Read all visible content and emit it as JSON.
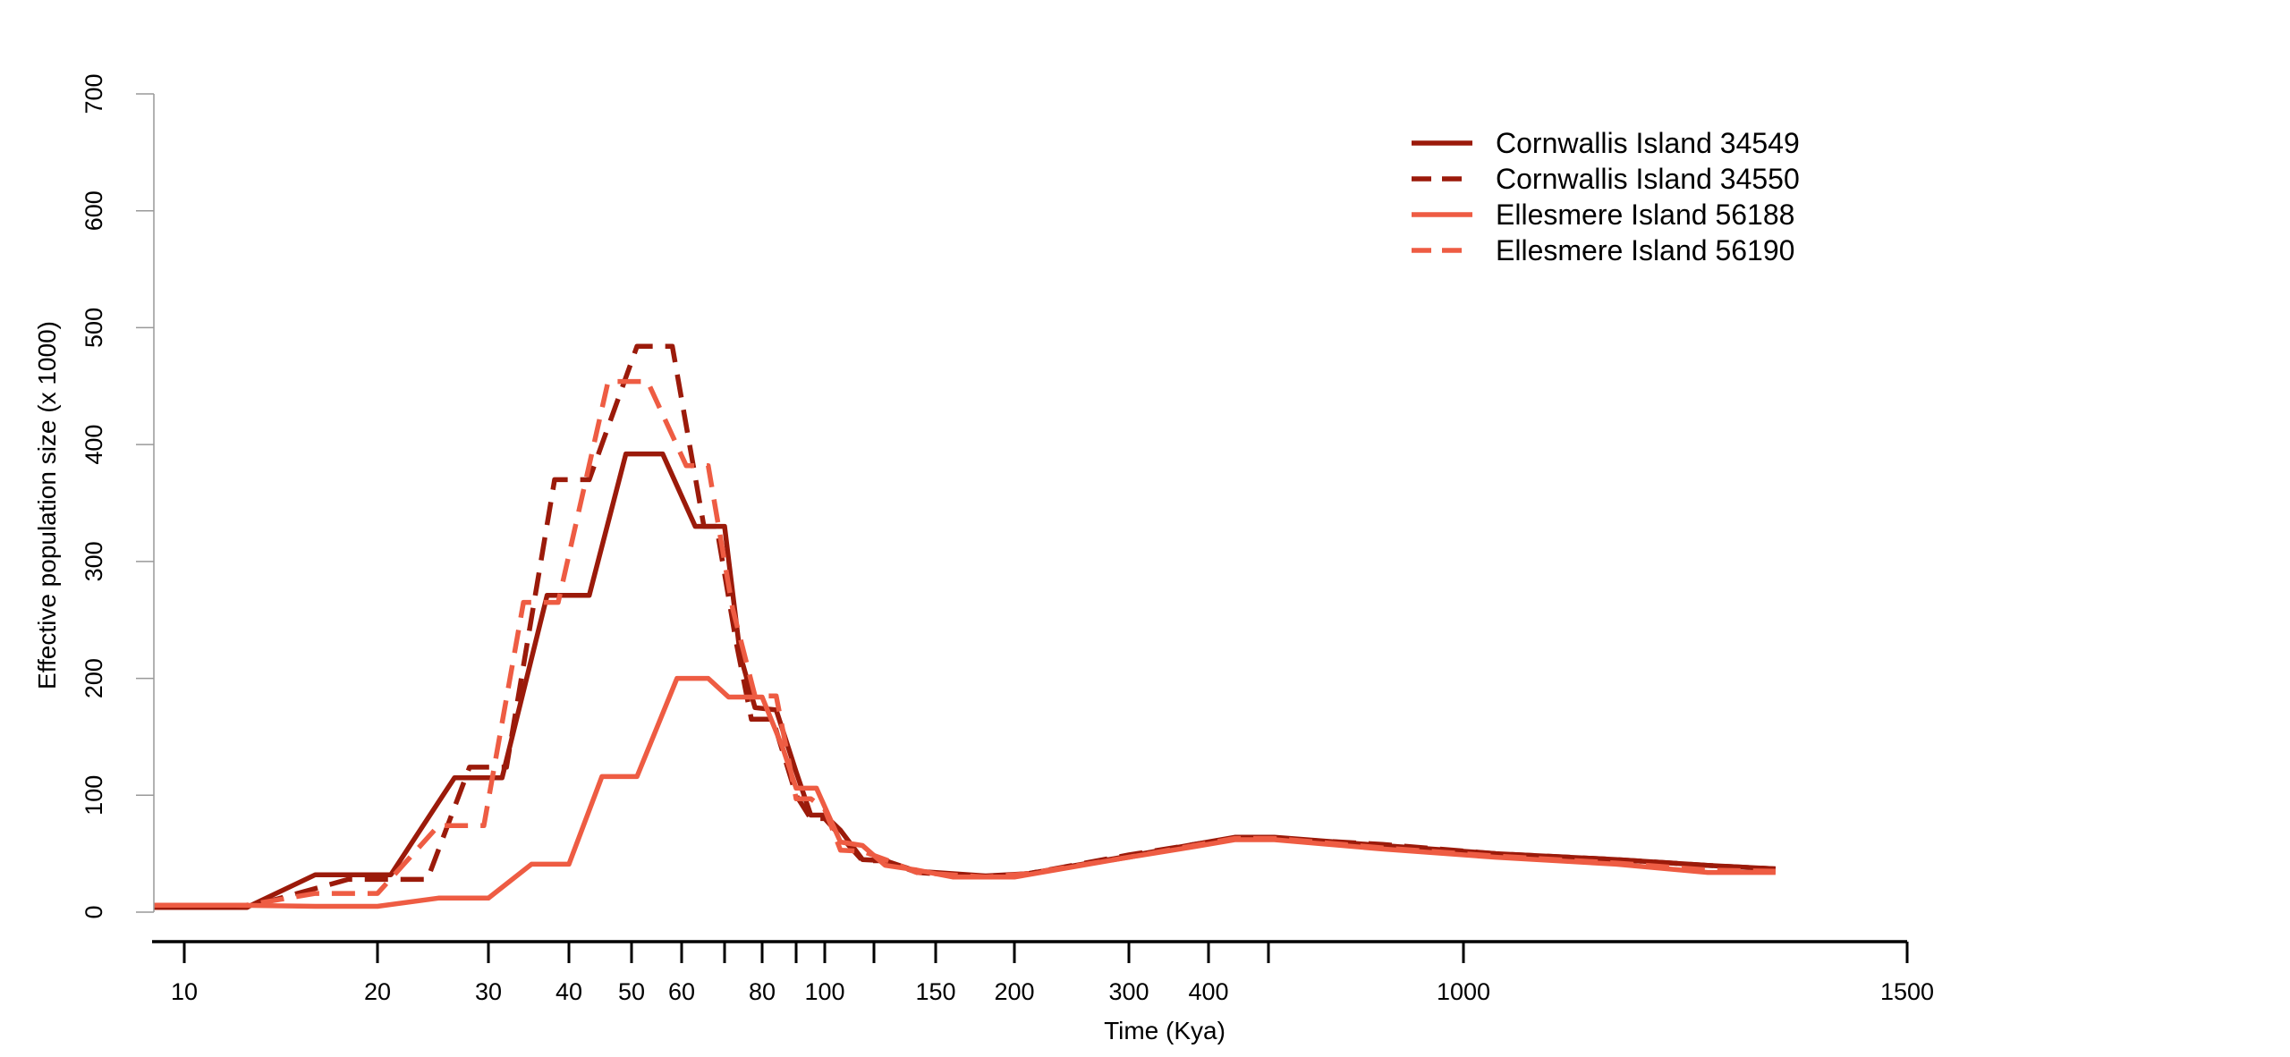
{
  "chart_data": {
    "type": "line",
    "title": "",
    "xlabel": "Time (Kya)",
    "ylabel": "Effective population size (x 1000)",
    "x_ticks": [
      "10",
      "20",
      "30",
      "40",
      "50",
      "60",
      "",
      "80",
      "",
      "100",
      "",
      "150",
      "200",
      "300",
      "400",
      "",
      "1000",
      "1500"
    ],
    "y_ticks": [
      "0",
      "100",
      "200",
      "300",
      "400",
      "500",
      "600",
      "700"
    ],
    "ylim": [
      0,
      700
    ],
    "grid": false,
    "legend_position": "top-right",
    "series": [
      {
        "name": "Cornwallis Island 34549",
        "color": "#9b1a0a",
        "dash": "solid",
        "points": [
          [
            8,
            4
          ],
          [
            12.5,
            4
          ],
          [
            16,
            32
          ],
          [
            21,
            32
          ],
          [
            26.5,
            115
          ],
          [
            31.5,
            115
          ],
          [
            37,
            271
          ],
          [
            43,
            271
          ],
          [
            49,
            392
          ],
          [
            56,
            392
          ],
          [
            63,
            330
          ],
          [
            70,
            330
          ],
          [
            74,
            220
          ],
          [
            78,
            175
          ],
          [
            84,
            173
          ],
          [
            90,
            120
          ],
          [
            95,
            83
          ],
          [
            100,
            83
          ],
          [
            106,
            70
          ],
          [
            115,
            45
          ],
          [
            125,
            44
          ],
          [
            140,
            35
          ],
          [
            180,
            31
          ],
          [
            210,
            33
          ],
          [
            300,
            48
          ],
          [
            380,
            58
          ],
          [
            460,
            64
          ],
          [
            560,
            64
          ],
          [
            780,
            57
          ],
          [
            1030,
            50
          ],
          [
            1150,
            45
          ],
          [
            1250,
            40
          ],
          [
            1330,
            37
          ]
        ]
      },
      {
        "name": "Cornwallis Island 34550",
        "color": "#9b1a0a",
        "dash": "dashed",
        "points": [
          [
            8,
            4
          ],
          [
            12.5,
            4
          ],
          [
            18,
            28
          ],
          [
            24,
            28
          ],
          [
            28,
            124
          ],
          [
            32,
            124
          ],
          [
            38,
            370
          ],
          [
            43,
            370
          ],
          [
            51,
            484
          ],
          [
            58,
            484
          ],
          [
            65,
            330
          ],
          [
            68,
            330
          ],
          [
            73,
            230
          ],
          [
            77,
            165
          ],
          [
            83,
            165
          ],
          [
            90,
            100
          ],
          [
            95,
            80
          ],
          [
            100,
            80
          ],
          [
            106,
            65
          ],
          [
            115,
            44
          ],
          [
            125,
            44
          ],
          [
            140,
            34
          ],
          [
            180,
            30
          ],
          [
            210,
            33
          ],
          [
            300,
            49
          ],
          [
            380,
            58
          ],
          [
            460,
            63
          ],
          [
            560,
            63
          ],
          [
            780,
            58
          ],
          [
            1030,
            50
          ],
          [
            1150,
            45
          ],
          [
            1250,
            40
          ],
          [
            1330,
            37
          ]
        ]
      },
      {
        "name": "Ellesmere Island 56188",
        "color": "#ee5c43",
        "dash": "solid",
        "points": [
          [
            8,
            6
          ],
          [
            12,
            6
          ],
          [
            16,
            5
          ],
          [
            20,
            5
          ],
          [
            25,
            12
          ],
          [
            30,
            12
          ],
          [
            35,
            41
          ],
          [
            40,
            41
          ],
          [
            45,
            116
          ],
          [
            51,
            116
          ],
          [
            59,
            200
          ],
          [
            66,
            200
          ],
          [
            71,
            184
          ],
          [
            80,
            184
          ],
          [
            86,
            140
          ],
          [
            90,
            106
          ],
          [
            97,
            106
          ],
          [
            106,
            60
          ],
          [
            115,
            57
          ],
          [
            125,
            40
          ],
          [
            140,
            36
          ],
          [
            160,
            30
          ],
          [
            200,
            30
          ],
          [
            300,
            47
          ],
          [
            380,
            56
          ],
          [
            460,
            62
          ],
          [
            560,
            62
          ],
          [
            780,
            54
          ],
          [
            1030,
            47
          ],
          [
            1150,
            41
          ],
          [
            1250,
            34
          ],
          [
            1330,
            34
          ]
        ]
      },
      {
        "name": "Ellesmere Island 56190",
        "color": "#ee5c43",
        "dash": "dashed",
        "points": [
          [
            8,
            6
          ],
          [
            12.5,
            6
          ],
          [
            16,
            16
          ],
          [
            20,
            16
          ],
          [
            25,
            74
          ],
          [
            29.5,
            74
          ],
          [
            34,
            265
          ],
          [
            38.5,
            265
          ],
          [
            46,
            454
          ],
          [
            53,
            454
          ],
          [
            61,
            382
          ],
          [
            66,
            382
          ],
          [
            72,
            260
          ],
          [
            78,
            185
          ],
          [
            84,
            185
          ],
          [
            90,
            97
          ],
          [
            95,
            97
          ],
          [
            100,
            88
          ],
          [
            106,
            53
          ],
          [
            115,
            52
          ],
          [
            125,
            45
          ],
          [
            140,
            34
          ],
          [
            180,
            30
          ],
          [
            210,
            33
          ],
          [
            300,
            47
          ],
          [
            380,
            57
          ],
          [
            460,
            63
          ],
          [
            560,
            63
          ],
          [
            780,
            55
          ],
          [
            1030,
            48
          ],
          [
            1150,
            42
          ],
          [
            1250,
            36
          ],
          [
            1330,
            35
          ]
        ]
      }
    ]
  }
}
